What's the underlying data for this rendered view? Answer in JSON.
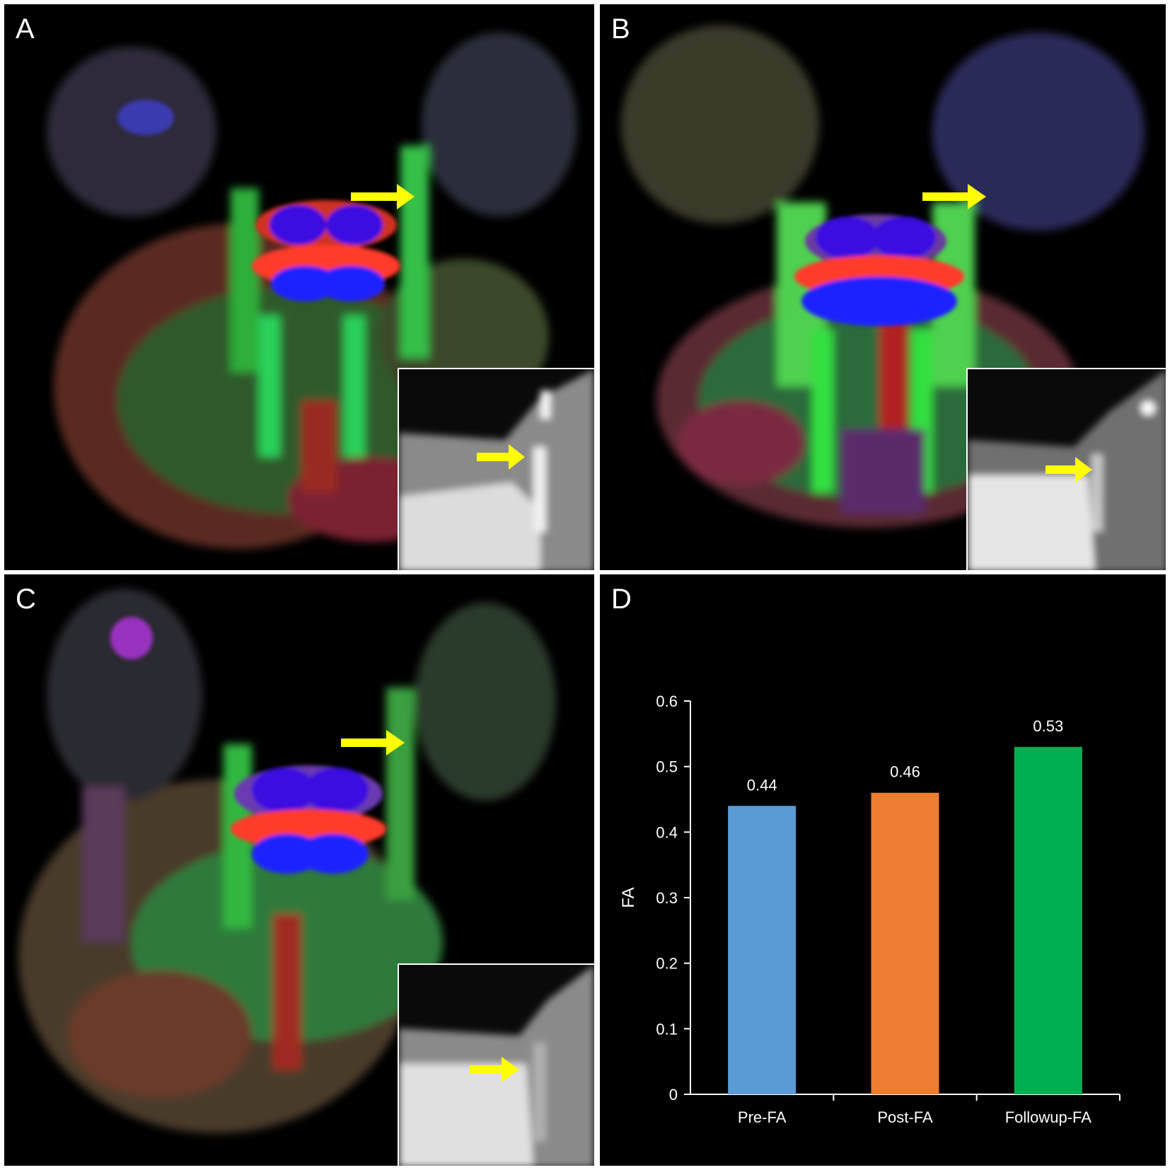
{
  "panels": {
    "a": {
      "label": "A"
    },
    "b": {
      "label": "B"
    },
    "c": {
      "label": "C"
    },
    "d": {
      "label": "D"
    }
  },
  "colors": {
    "background": "#000000",
    "arrow": "#ffff00",
    "bar_pre": "#5b9bd5",
    "bar_post": "#ed7d31",
    "bar_followup": "#00b050",
    "axis": "#ffffff"
  },
  "chart_data": {
    "type": "bar",
    "categories": [
      "Pre-FA",
      "Post-FA",
      "Followup-FA"
    ],
    "values": [
      0.44,
      0.46,
      0.53
    ],
    "data_labels": [
      "0.44",
      "0.46",
      "0.53"
    ],
    "xlabel": "",
    "ylabel": "FA",
    "ylim": [
      0,
      0.6
    ],
    "yticks": [
      "0",
      "0.1",
      "0.2",
      "0.3",
      "0.4",
      "0.5",
      "0.6"
    ],
    "grid": false,
    "legend": "none"
  }
}
